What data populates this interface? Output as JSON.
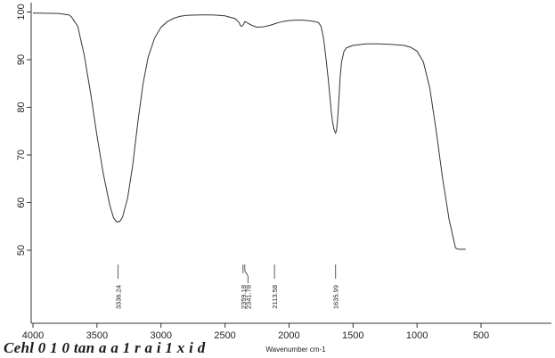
{
  "chart_data": {
    "type": "line",
    "xlabel": "Wavenumber cm-1",
    "ylabel": "",
    "xlim": [
      4000,
      400
    ],
    "ylim": [
      40,
      100
    ],
    "x_ticks": [
      4000,
      3500,
      3000,
      2500,
      2000,
      1500,
      1000,
      500
    ],
    "y_ticks": [
      50,
      60,
      70,
      80,
      90,
      100
    ],
    "grid": false,
    "series": [
      {
        "x": [
          4000,
          3800,
          3720,
          3700,
          3650,
          3600,
          3550,
          3500,
          3450,
          3400,
          3370,
          3345,
          3320,
          3300,
          3260,
          3220,
          3180,
          3140,
          3100,
          3050,
          3000,
          2950,
          2900,
          2850,
          2800,
          2700,
          2600,
          2500,
          2420,
          2390,
          2380,
          2370,
          2355,
          2345,
          2330,
          2310,
          2290,
          2250,
          2200,
          2150,
          2115,
          2080,
          2050,
          2000,
          1950,
          1900,
          1850,
          1800,
          1770,
          1750,
          1730,
          1710,
          1690,
          1680,
          1670,
          1660,
          1650,
          1640,
          1636,
          1630,
          1620,
          1610,
          1600,
          1590,
          1570,
          1550,
          1500,
          1400,
          1300,
          1200,
          1100,
          1050,
          1000,
          950,
          900,
          850,
          800,
          750,
          700,
          680,
          650,
          620
        ],
        "y": [
          99.8,
          99.7,
          99.4,
          99.0,
          97.0,
          91.0,
          83.0,
          74.0,
          66.0,
          59.5,
          56.8,
          55.9,
          56.1,
          57.0,
          61.0,
          68.0,
          77.0,
          85.0,
          90.5,
          94.5,
          96.8,
          98.0,
          98.7,
          99.1,
          99.3,
          99.4,
          99.4,
          99.2,
          98.6,
          97.8,
          97.2,
          97.0,
          97.4,
          98.0,
          97.8,
          97.5,
          97.2,
          96.8,
          96.9,
          97.2,
          97.5,
          97.8,
          98.0,
          98.2,
          98.3,
          98.3,
          98.2,
          98.0,
          97.8,
          97.0,
          94.5,
          90.0,
          85.0,
          82.0,
          79.0,
          77.0,
          75.5,
          74.8,
          74.6,
          75.0,
          77.5,
          82.0,
          86.5,
          89.5,
          91.8,
          92.5,
          93.0,
          93.3,
          93.3,
          93.2,
          93.0,
          92.6,
          91.8,
          89.5,
          84.0,
          75.0,
          65.0,
          56.5,
          50.5,
          50.2,
          50.2,
          50.2
        ]
      }
    ],
    "peak_labels": [
      "3336.24",
      "2359.18",
      "2341.78",
      "2113.58",
      "1635.99"
    ],
    "peak_positions": [
      3336.24,
      2359.18,
      2341.78,
      2113.58,
      1635.99
    ]
  },
  "caption": "Cehl 0 1 0 tan a a 1 r a i 1 x i d"
}
